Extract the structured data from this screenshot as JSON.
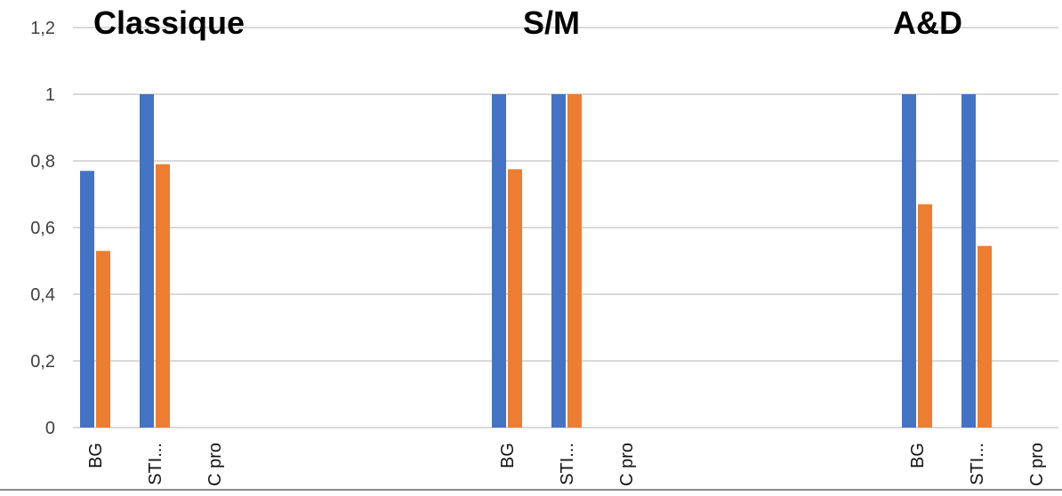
{
  "chart_data": {
    "type": "bar",
    "ylim": [
      0,
      1.2
    ],
    "yticks": [
      0,
      0.2,
      0.4,
      0.6,
      0.8,
      1,
      1.2
    ],
    "ytick_labels": [
      "0",
      "0,2",
      "0,4",
      "0,6",
      "0,8",
      "1",
      "1,2"
    ],
    "grid": true,
    "legend": "none",
    "colors": [
      "#4472C4",
      "#ED7D31"
    ],
    "groups": [
      {
        "title": "Classique",
        "categories": [
          "BG",
          "STI...",
          "C pro"
        ],
        "series": [
          {
            "values": [
              0.77,
              1.0,
              null
            ]
          },
          {
            "values": [
              0.53,
              0.79,
              null
            ]
          }
        ]
      },
      {
        "title": "S/M",
        "categories": [
          "BG",
          "STI...",
          "C pro"
        ],
        "series": [
          {
            "values": [
              1.0,
              1.0,
              null
            ]
          },
          {
            "values": [
              0.775,
              1.0,
              null
            ]
          }
        ]
      },
      {
        "title": "A&D",
        "categories": [
          "BG",
          "STI...",
          "C pro"
        ],
        "series": [
          {
            "values": [
              1.0,
              1.0,
              null
            ]
          },
          {
            "values": [
              0.67,
              0.545,
              null
            ]
          }
        ]
      }
    ]
  }
}
